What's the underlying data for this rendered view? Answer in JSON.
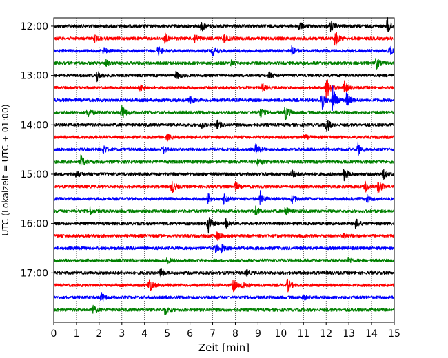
{
  "chart_data": {
    "type": "line",
    "title": "",
    "xlabel": "Zeit  [min]",
    "ylabel": "UTC (Lokalzeit = UTC + 01:00)",
    "xlim": [
      0,
      15
    ],
    "x_ticks": [
      "0",
      "1",
      "2",
      "3",
      "4",
      "5",
      "6",
      "7",
      "8",
      "9",
      "10",
      "11",
      "12",
      "13",
      "14",
      "15"
    ],
    "y_ticks": [
      {
        "label": "12:00",
        "minutes": 720
      },
      {
        "label": "13:00",
        "minutes": 780
      },
      {
        "label": "14:00",
        "minutes": 840
      },
      {
        "label": "15:00",
        "minutes": 900
      },
      {
        "label": "16:00",
        "minutes": 960
      },
      {
        "label": "17:00",
        "minutes": 1020
      }
    ],
    "ylim_minutes": [
      710,
      1080
    ],
    "line_interval_minutes": 15,
    "grid_x": "dotted",
    "color_cycle": [
      "#000000",
      "#ff0000",
      "#0000ff",
      "#008000"
    ],
    "series": [
      {
        "start": "12:00",
        "color": "#000000",
        "events": [
          {
            "t": 6.5,
            "amp": 0.35
          },
          {
            "t": 10.8,
            "amp": 0.3
          },
          {
            "t": 12.2,
            "amp": 0.35
          },
          {
            "t": 14.7,
            "amp": 0.55
          }
        ]
      },
      {
        "start": "12:15",
        "color": "#ff0000",
        "events": [
          {
            "t": 1.8,
            "amp": 0.2
          },
          {
            "t": 4.9,
            "amp": 0.3
          },
          {
            "t": 6.2,
            "amp": 0.3
          },
          {
            "t": 7.5,
            "amp": 0.3
          },
          {
            "t": 12.4,
            "amp": 0.55
          }
        ]
      },
      {
        "start": "12:30",
        "color": "#0000ff",
        "events": [
          {
            "t": 2.2,
            "amp": 0.2
          },
          {
            "t": 4.6,
            "amp": 0.35
          },
          {
            "t": 7.0,
            "amp": 0.3
          },
          {
            "t": 10.5,
            "amp": 0.35
          },
          {
            "t": 14.8,
            "amp": 0.3
          }
        ]
      },
      {
        "start": "12:45",
        "color": "#008000",
        "events": [
          {
            "t": 2.3,
            "amp": 0.2
          },
          {
            "t": 7.8,
            "amp": 0.2
          },
          {
            "t": 14.2,
            "amp": 0.4
          }
        ]
      },
      {
        "start": "13:00",
        "color": "#000000",
        "events": [
          {
            "t": 1.9,
            "amp": 0.35
          },
          {
            "t": 5.4,
            "amp": 0.25
          },
          {
            "t": 9.5,
            "amp": 0.2
          }
        ]
      },
      {
        "start": "13:15",
        "color": "#ff0000",
        "events": [
          {
            "t": 3.8,
            "amp": 0.25
          },
          {
            "t": 9.2,
            "amp": 0.25
          },
          {
            "t": 12.0,
            "amp": 0.9
          },
          {
            "t": 12.8,
            "amp": 0.4
          }
        ]
      },
      {
        "start": "13:30",
        "color": "#0000ff",
        "events": [
          {
            "t": 6.0,
            "amp": 0.2
          },
          {
            "t": 11.8,
            "amp": 0.7
          },
          {
            "t": 12.3,
            "amp": 0.9
          },
          {
            "t": 12.9,
            "amp": 0.5
          }
        ]
      },
      {
        "start": "13:45",
        "color": "#008000",
        "events": [
          {
            "t": 1.5,
            "amp": 0.3
          },
          {
            "t": 3.0,
            "amp": 0.45
          },
          {
            "t": 9.1,
            "amp": 0.3
          },
          {
            "t": 10.2,
            "amp": 0.5
          }
        ]
      },
      {
        "start": "14:00",
        "color": "#000000",
        "events": [
          {
            "t": 6.5,
            "amp": 0.25
          },
          {
            "t": 7.2,
            "amp": 0.3
          },
          {
            "t": 12.0,
            "amp": 0.6
          }
        ]
      },
      {
        "start": "14:15",
        "color": "#ff0000",
        "events": [
          {
            "t": 5.0,
            "amp": 0.2
          },
          {
            "t": 11.0,
            "amp": 0.2
          }
        ]
      },
      {
        "start": "14:30",
        "color": "#0000ff",
        "events": [
          {
            "t": 2.2,
            "amp": 0.3
          },
          {
            "t": 4.8,
            "amp": 0.3
          },
          {
            "t": 8.9,
            "amp": 0.35
          },
          {
            "t": 13.4,
            "amp": 0.45
          }
        ]
      },
      {
        "start": "14:45",
        "color": "#008000",
        "events": [
          {
            "t": 1.2,
            "amp": 0.4
          },
          {
            "t": 9.0,
            "amp": 0.2
          }
        ]
      },
      {
        "start": "15:00",
        "color": "#000000",
        "events": [
          {
            "t": 1.0,
            "amp": 0.2
          },
          {
            "t": 10.5,
            "amp": 0.3
          },
          {
            "t": 12.8,
            "amp": 0.4
          },
          {
            "t": 14.5,
            "amp": 0.35
          }
        ]
      },
      {
        "start": "15:15",
        "color": "#ff0000",
        "events": [
          {
            "t": 5.2,
            "amp": 0.45
          },
          {
            "t": 8.0,
            "amp": 0.25
          },
          {
            "t": 13.7,
            "amp": 0.45
          },
          {
            "t": 14.3,
            "amp": 0.5
          }
        ]
      },
      {
        "start": "15:30",
        "color": "#0000ff",
        "events": [
          {
            "t": 6.8,
            "amp": 0.3
          },
          {
            "t": 7.5,
            "amp": 0.35
          },
          {
            "t": 9.1,
            "amp": 0.45
          },
          {
            "t": 10.5,
            "amp": 0.25
          },
          {
            "t": 13.8,
            "amp": 0.3
          }
        ]
      },
      {
        "start": "15:45",
        "color": "#008000",
        "events": [
          {
            "t": 1.6,
            "amp": 0.25
          },
          {
            "t": 8.9,
            "amp": 0.3
          },
          {
            "t": 10.2,
            "amp": 0.35
          }
        ]
      },
      {
        "start": "16:00",
        "color": "#000000",
        "events": [
          {
            "t": 6.8,
            "amp": 0.6
          },
          {
            "t": 7.6,
            "amp": 0.3
          },
          {
            "t": 13.3,
            "amp": 0.3
          }
        ]
      },
      {
        "start": "16:15",
        "color": "#ff0000",
        "events": [
          {
            "t": 7.2,
            "amp": 0.25
          },
          {
            "t": 12.8,
            "amp": 0.2
          }
        ]
      },
      {
        "start": "16:30",
        "color": "#0000ff",
        "events": [
          {
            "t": 7.1,
            "amp": 0.25
          },
          {
            "t": 7.4,
            "amp": 0.25
          }
        ]
      },
      {
        "start": "16:45",
        "color": "#008000",
        "events": [
          {
            "t": 5.0,
            "amp": 0.15
          },
          {
            "t": 13.0,
            "amp": 0.15
          }
        ]
      },
      {
        "start": "17:00",
        "color": "#000000",
        "events": [
          {
            "t": 4.7,
            "amp": 0.3
          },
          {
            "t": 8.5,
            "amp": 0.2
          }
        ]
      },
      {
        "start": "17:15",
        "color": "#ff0000",
        "events": [
          {
            "t": 4.2,
            "amp": 0.5
          },
          {
            "t": 7.9,
            "amp": 0.4
          },
          {
            "t": 8.3,
            "amp": 0.3
          },
          {
            "t": 10.3,
            "amp": 0.4
          }
        ]
      },
      {
        "start": "17:30",
        "color": "#0000ff",
        "events": [
          {
            "t": 2.1,
            "amp": 0.3
          },
          {
            "t": 11.0,
            "amp": 0.15
          }
        ]
      },
      {
        "start": "17:45",
        "color": "#008000",
        "events": [
          {
            "t": 1.7,
            "amp": 0.3
          },
          {
            "t": 4.9,
            "amp": 0.3
          }
        ]
      }
    ]
  }
}
